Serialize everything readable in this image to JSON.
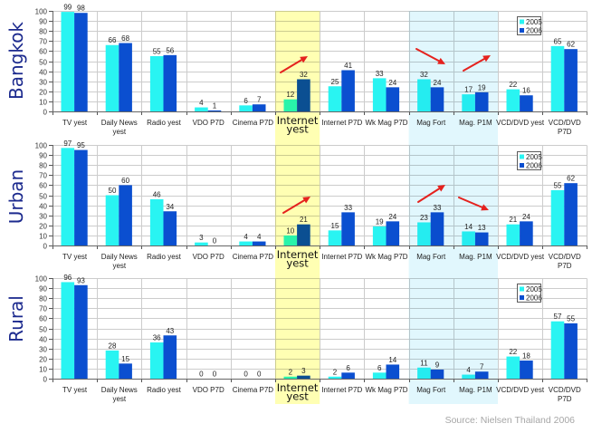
{
  "colors": {
    "series_2005": "#29F4F2",
    "series_2006": "#0B4FD0",
    "arrow": "#E5221E",
    "panel_label": "#1C2A8E",
    "source_text": "#A6A6A6"
  },
  "highlights": [
    {
      "categories": [
        "Internet yest"
      ],
      "color": "#FFFFB3"
    },
    {
      "categories": [
        "Mag Fort",
        "Mag. P1M"
      ],
      "color": "#E1F7FD"
    }
  ],
  "emphasized_category": "Internet yest",
  "category_label_lines": [
    [
      "TV yest"
    ],
    [
      "Daily News",
      "yest"
    ],
    [
      "Radio yest"
    ],
    [
      "VDO P7D"
    ],
    [
      "Cinema P7D"
    ],
    [
      "Internet",
      "yest"
    ],
    [
      "Internet P7D"
    ],
    [
      "Wk Mag P7D"
    ],
    [
      "Mag Fort"
    ],
    [
      "Mag. P1M"
    ],
    [
      "VCD/DVD yest"
    ],
    [
      "VCD/DVD",
      "P7D"
    ]
  ],
  "chart_data": [
    {
      "type": "bar",
      "title": "Bangkok",
      "categories": [
        "TV yest",
        "Daily News yest",
        "Radio yest",
        "VDO P7D",
        "Cinema P7D",
        "Internet yest",
        "Internet P7D",
        "Wk Mag P7D",
        "Mag Fort",
        "Mag. P1M",
        "VCD/DVD yest",
        "VCD/DVD P7D"
      ],
      "series": [
        {
          "name": "2005",
          "values": [
            99,
            66,
            55,
            4,
            6,
            12,
            25,
            33,
            32,
            17,
            22,
            65
          ]
        },
        {
          "name": "2006",
          "values": [
            98,
            68,
            56,
            1,
            7,
            32,
            41,
            24,
            24,
            19,
            16,
            62
          ]
        }
      ],
      "xlabel": "",
      "ylabel": "",
      "ylim": [
        0,
        100
      ],
      "yticks": [
        0,
        10,
        20,
        30,
        40,
        50,
        60,
        70,
        80,
        90,
        100
      ],
      "grid": true,
      "legend": "top-right",
      "trend_arrows": [
        {
          "category": "Internet yest",
          "direction": "up"
        },
        {
          "category": "Mag Fort",
          "direction": "down"
        },
        {
          "category": "Mag. P1M",
          "direction": "up"
        }
      ]
    },
    {
      "type": "bar",
      "title": "Urban",
      "categories": [
        "TV yest",
        "Daily News yest",
        "Radio yest",
        "VDO P7D",
        "Cinema P7D",
        "Internet yest",
        "Internet P7D",
        "Wk Mag P7D",
        "Mag Fort",
        "Mag. P1M",
        "VCD/DVD yest",
        "VCD/DVD P7D"
      ],
      "series": [
        {
          "name": "2005",
          "values": [
            97,
            50,
            46,
            3,
            4,
            10,
            15,
            19,
            23,
            14,
            21,
            55
          ]
        },
        {
          "name": "2006",
          "values": [
            95,
            60,
            34,
            0,
            4,
            21,
            33,
            24,
            33,
            13,
            24,
            62
          ]
        }
      ],
      "xlabel": "",
      "ylabel": "",
      "ylim": [
        0,
        100
      ],
      "yticks": [
        0,
        10,
        20,
        30,
        40,
        50,
        60,
        70,
        80,
        90,
        100
      ],
      "grid": true,
      "legend": "top-right",
      "trend_arrows": [
        {
          "category": "Internet yest",
          "direction": "up"
        },
        {
          "category": "Mag Fort",
          "direction": "up"
        },
        {
          "category": "Mag. P1M",
          "direction": "down"
        }
      ]
    },
    {
      "type": "bar",
      "title": "Rural",
      "categories": [
        "TV yest",
        "Daily News yest",
        "Radio yest",
        "VDO P7D",
        "Cinema P7D",
        "Internet yest",
        "Internet P7D",
        "Wk Mag P7D",
        "Mag Fort",
        "Mag. P1M",
        "VCD/DVD yest",
        "VCD/DVD P7D"
      ],
      "series": [
        {
          "name": "2005",
          "values": [
            96,
            28,
            36,
            0,
            0,
            2,
            2,
            6,
            11,
            4,
            22,
            57
          ]
        },
        {
          "name": "2006",
          "values": [
            93,
            15,
            43,
            0,
            0,
            3,
            6,
            14,
            9,
            7,
            18,
            55
          ]
        }
      ],
      "xlabel": "",
      "ylabel": "",
      "ylim": [
        0,
        100
      ],
      "yticks": [
        0,
        10,
        20,
        30,
        40,
        50,
        60,
        70,
        80,
        90,
        100
      ],
      "grid": true,
      "legend": "top-right",
      "trend_arrows": []
    }
  ],
  "source": "Source: Nielsen Thailand 2006"
}
